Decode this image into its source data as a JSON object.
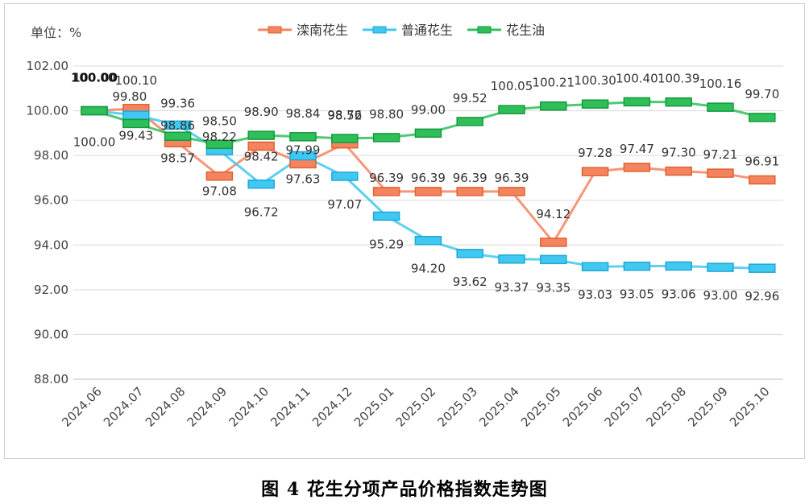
{
  "caption": "图 4  花生分项产品价格指数走势图",
  "chart_data": {
    "type": "line",
    "unit_label": "单位：%",
    "x": [
      "2024.06",
      "2024.07",
      "2024.08",
      "2024.09",
      "2024.10",
      "2024.11",
      "2024.12",
      "2025.01",
      "2025.02",
      "2025.03",
      "2025.04",
      "2025.05",
      "2025.06",
      "2025.07",
      "2025.08",
      "2025.09",
      "2025.10"
    ],
    "ylim": [
      88,
      102
    ],
    "yticks": [
      "88.00",
      "90.00",
      "92.00",
      "94.00",
      "96.00",
      "98.00",
      "100.00",
      "102.00"
    ],
    "grid": true,
    "legend_position": "top",
    "series": [
      {
        "name": "滦南花生",
        "color": "#F4845F",
        "border": "#E0622F",
        "values": [
          100.0,
          100.1,
          98.57,
          97.08,
          98.42,
          97.63,
          98.52,
          96.39,
          96.39,
          96.39,
          96.39,
          94.12,
          97.28,
          97.47,
          97.3,
          97.21,
          96.91
        ],
        "labels": [
          "100.00",
          "100.10",
          "98.57",
          "97.08",
          "98.42",
          "97.63",
          "98.52",
          "96.39",
          "96.39",
          "96.39",
          "96.39",
          "94.12",
          "97.28",
          "97.47",
          "97.30",
          "97.21",
          "96.91"
        ]
      },
      {
        "name": "普通花生",
        "color": "#41C8F0",
        "border": "#1FA8D8",
        "values": [
          100.0,
          99.8,
          99.36,
          98.22,
          96.72,
          97.99,
          97.07,
          95.29,
          94.2,
          93.62,
          93.37,
          93.35,
          93.03,
          93.05,
          93.06,
          93.0,
          92.96
        ],
        "labels": [
          "100.00",
          "99.80",
          "99.36",
          "98.22",
          "96.72",
          "97.99",
          "97.07",
          "95.29",
          "94.20",
          "93.62",
          "93.37",
          "93.35",
          "93.03",
          "93.05",
          "93.06",
          "93.00",
          "92.96"
        ]
      },
      {
        "name": "花生油",
        "color": "#2FBF5A",
        "border": "#159A3C",
        "values": [
          100.0,
          99.43,
          98.86,
          98.5,
          98.9,
          98.84,
          98.76,
          98.8,
          99.0,
          99.52,
          100.05,
          100.21,
          100.3,
          100.4,
          100.39,
          100.16,
          99.7
        ],
        "labels": [
          "100.00",
          "99.43",
          "98.86",
          "98.50",
          "98.90",
          "98.84",
          "98.76",
          "98.80",
          "99.00",
          "99.52",
          "100.05",
          "100.21",
          "100.30",
          "100.40",
          "100.39",
          "100.16",
          "99.70"
        ]
      }
    ]
  }
}
